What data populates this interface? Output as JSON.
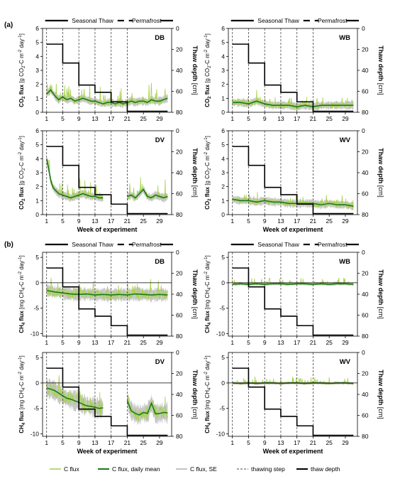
{
  "section_labels": {
    "a": "(a)",
    "b": "(b)"
  },
  "phase_labels": {
    "thaw": "Seasonal Thaw",
    "perm": "Permafrost"
  },
  "x_axis_title": "Week of experiment",
  "x_ticks": [
    1,
    5,
    9,
    13,
    17,
    21,
    25,
    29
  ],
  "thaw_depth_axis": {
    "label": "Thaw depth",
    "unit": "[cm]",
    "ticks": [
      0,
      20,
      40,
      60,
      80
    ],
    "range": [
      0,
      80
    ]
  },
  "colors": {
    "c_flux": "#a6d24b",
    "daily_mean": "#1a7a1a",
    "se": "#b4b4b4",
    "step": "#444444",
    "depth": "#000000"
  },
  "legend": {
    "c_flux": "C flux",
    "daily_mean": "C flux, daily mean",
    "se": "C flux, SE",
    "thawing_step": "thawing step",
    "thaw_depth": "thaw depth"
  },
  "chart_data": [
    {
      "id": "co2-DB",
      "type": "line",
      "panel_label": "DB",
      "y_label": "CO2 flux [g CO2-C m-2 day-1]",
      "y_ticks": [
        0,
        1,
        2,
        3,
        4,
        5,
        6
      ],
      "ylim": [
        0,
        6
      ],
      "x_range": [
        0,
        32
      ],
      "thawing_steps": [
        1,
        5,
        9,
        13,
        17,
        21
      ],
      "thaw_depth_weeks": [
        1,
        5,
        9,
        13,
        17,
        21,
        31
      ],
      "thaw_depth_cm": [
        15,
        33,
        54,
        61,
        70,
        79,
        79
      ],
      "daily_mean": {
        "x": [
          1,
          2,
          3,
          4,
          5,
          6,
          7,
          8,
          9,
          10,
          11,
          12,
          13,
          14,
          15,
          16,
          17,
          18,
          19,
          20,
          22,
          23,
          24,
          25,
          26,
          27,
          28,
          29,
          30,
          31
        ],
        "y": [
          1.3,
          1.6,
          1.2,
          0.9,
          1.1,
          0.9,
          1.0,
          0.8,
          0.9,
          1.0,
          0.9,
          0.8,
          0.8,
          0.7,
          0.6,
          0.7,
          0.7,
          0.6,
          0.7,
          0.6,
          0.8,
          0.7,
          0.8,
          0.8,
          0.7,
          0.9,
          0.8,
          0.8,
          0.9,
          1.0
        ]
      }
    },
    {
      "id": "co2-WB",
      "type": "line",
      "panel_label": "WB",
      "y_label": "CO2 flux [g CO2-C m-2 day-1]",
      "y_ticks": [
        0,
        1,
        2,
        3,
        4,
        5,
        6
      ],
      "ylim": [
        0,
        6
      ],
      "x_range": [
        0,
        32
      ],
      "thawing_steps": [
        1,
        5,
        9,
        13,
        17,
        21
      ],
      "thaw_depth_weeks": [
        1,
        5,
        9,
        13,
        17,
        21,
        31
      ],
      "thaw_depth_cm": [
        15,
        33,
        54,
        61,
        70,
        79,
        79
      ],
      "daily_mean": {
        "x": [
          1,
          3,
          5,
          7,
          9,
          11,
          13,
          15,
          17,
          19,
          21,
          23,
          25,
          27,
          29,
          31
        ],
        "y": [
          0.7,
          0.7,
          0.6,
          0.8,
          0.6,
          0.5,
          0.5,
          0.5,
          0.4,
          0.5,
          0.4,
          0.5,
          0.5,
          0.5,
          0.5,
          0.5
        ]
      }
    },
    {
      "id": "co2-DV",
      "type": "line",
      "panel_label": "DV",
      "y_label": "CO2 flux [g CO2-C m-2 day-1]",
      "y_ticks": [
        0,
        1,
        2,
        3,
        4,
        5,
        6
      ],
      "ylim": [
        0,
        6
      ],
      "x_range": [
        0,
        32
      ],
      "thawing_steps": [
        1,
        5,
        9,
        13,
        17,
        21
      ],
      "thaw_depth_weeks": [
        1,
        5,
        9,
        13,
        17,
        21,
        31
      ],
      "thaw_depth_cm": [
        15,
        33,
        54,
        61,
        70,
        79,
        79
      ],
      "daily_mean": {
        "x": [
          1,
          1.5,
          2,
          2.5,
          3,
          4,
          5,
          6,
          7,
          8,
          9,
          10,
          11,
          12,
          13,
          14,
          15
        ],
        "y": [
          4.0,
          3.3,
          2.5,
          2.0,
          1.8,
          1.5,
          1.4,
          1.3,
          1.2,
          1.3,
          1.4,
          1.5,
          1.4,
          1.3,
          1.3,
          1.2,
          1.2
        ]
      },
      "daily_mean_2": {
        "x": [
          21,
          22,
          23,
          24,
          25,
          26,
          27,
          28,
          29,
          30,
          31
        ],
        "y": [
          1.3,
          1.4,
          1.2,
          1.5,
          1.8,
          1.3,
          1.2,
          1.4,
          1.3,
          1.2,
          1.3
        ]
      }
    },
    {
      "id": "co2-WV",
      "type": "line",
      "panel_label": "WV",
      "y_label": "CO2 flux [g CO2-C m-2 day-1]",
      "y_ticks": [
        0,
        1,
        2,
        3,
        4,
        5,
        6
      ],
      "ylim": [
        0,
        6
      ],
      "x_range": [
        0,
        32
      ],
      "thawing_steps": [
        1,
        5,
        9,
        13,
        17,
        21
      ],
      "thaw_depth_weeks": [
        1,
        5,
        9,
        13,
        17,
        21,
        31
      ],
      "thaw_depth_cm": [
        15,
        33,
        54,
        61,
        70,
        79,
        79
      ],
      "daily_mean": {
        "x": [
          1,
          3,
          5,
          7,
          9,
          11,
          13,
          15,
          17,
          19,
          21,
          23,
          25,
          27,
          29,
          31
        ],
        "y": [
          1.1,
          1.0,
          1.0,
          0.9,
          1.0,
          0.9,
          0.9,
          0.8,
          0.8,
          0.8,
          0.8,
          0.7,
          0.8,
          0.7,
          0.7,
          0.6
        ]
      }
    },
    {
      "id": "ch4-DB",
      "type": "line",
      "panel_label": "DB",
      "y_label": "CH4 flux [mg CH4-C m-2 day-1]",
      "y_ticks": [
        -10,
        -5,
        0,
        5
      ],
      "ylim": [
        -10.5,
        6
      ],
      "x_range": [
        0,
        32
      ],
      "thawing_steps": [
        1,
        5,
        9,
        13,
        17,
        21
      ],
      "thaw_depth_weeks": [
        1,
        5,
        9,
        13,
        17,
        21,
        31
      ],
      "thaw_depth_cm": [
        15,
        33,
        54,
        61,
        70,
        79,
        79
      ],
      "daily_mean": {
        "x": [
          1,
          3,
          5,
          7,
          9,
          11,
          13,
          15,
          17,
          19,
          21,
          23,
          25,
          27,
          29,
          31
        ],
        "y": [
          -1.5,
          -1.8,
          -2.0,
          -2.2,
          -2.3,
          -2.2,
          -2.4,
          -2.3,
          -2.4,
          -2.3,
          -2.4,
          -2.2,
          -2.3,
          -2.4,
          -2.3,
          -2.4
        ]
      }
    },
    {
      "id": "ch4-WB",
      "type": "line",
      "panel_label": "WB",
      "y_label": "CH4 flux [mg CH4-C m-2 day-1]",
      "y_ticks": [
        -10,
        -5,
        0,
        5
      ],
      "ylim": [
        -10.5,
        6
      ],
      "x_range": [
        0,
        32
      ],
      "thawing_steps": [
        1,
        5,
        9,
        13,
        17,
        21
      ],
      "thaw_depth_weeks": [
        1,
        5,
        9,
        13,
        17,
        21,
        31
      ],
      "thaw_depth_cm": [
        15,
        33,
        54,
        61,
        70,
        79,
        79
      ],
      "daily_mean": {
        "x": [
          1,
          3,
          5,
          7,
          9,
          11,
          13,
          15,
          17,
          19,
          21,
          23,
          25,
          27,
          29,
          31
        ],
        "y": [
          -0.3,
          -0.2,
          -0.3,
          -0.2,
          -0.3,
          -0.2,
          -0.2,
          -0.3,
          -0.2,
          -0.2,
          -0.3,
          -0.2,
          -0.3,
          -0.2,
          -0.2,
          -0.3
        ]
      }
    },
    {
      "id": "ch4-DV",
      "type": "line",
      "panel_label": "DV",
      "y_label": "CH4 flux [mg CH4-C m-2 day-1]",
      "y_ticks": [
        -10,
        -5,
        0,
        5
      ],
      "ylim": [
        -10.5,
        6
      ],
      "x_range": [
        0,
        32
      ],
      "thawing_steps": [
        1,
        5,
        9,
        13,
        17,
        21
      ],
      "thaw_depth_weeks": [
        1,
        5,
        9,
        13,
        17,
        21,
        31
      ],
      "thaw_depth_cm": [
        15,
        33,
        54,
        61,
        70,
        79,
        79
      ],
      "daily_mean": {
        "x": [
          1,
          2,
          3,
          4,
          5,
          6,
          7,
          8,
          9,
          10,
          11,
          12,
          13,
          14,
          15
        ],
        "y": [
          -1.0,
          -1.2,
          -1.5,
          -2.0,
          -2.5,
          -3.0,
          -3.2,
          -3.5,
          -3.8,
          -4.2,
          -4.5,
          -4.6,
          -4.8,
          -5.0,
          -4.9
        ]
      },
      "daily_mean_2": {
        "x": [
          21,
          22,
          23,
          24,
          25,
          26,
          27,
          28,
          29,
          30,
          31
        ],
        "y": [
          -3.5,
          -5.5,
          -6.0,
          -6.3,
          -5.8,
          -6.0,
          -4.0,
          -6.1,
          -6.0,
          -5.8,
          -5.9
        ]
      }
    },
    {
      "id": "ch4-WV",
      "type": "line",
      "panel_label": "WV",
      "y_label": "CH4 flux [mg CH4-C m-2 day-1]",
      "y_ticks": [
        -10,
        -5,
        0,
        5
      ],
      "ylim": [
        -10.5,
        6
      ],
      "x_range": [
        0,
        32
      ],
      "thawing_steps": [
        1,
        5,
        9,
        13,
        17,
        21
      ],
      "thaw_depth_weeks": [
        1,
        5,
        9,
        13,
        17,
        21,
        31
      ],
      "thaw_depth_cm": [
        15,
        33,
        54,
        61,
        70,
        79,
        79
      ],
      "daily_mean": {
        "x": [
          1,
          3,
          5,
          7,
          9,
          11,
          13,
          15,
          17,
          19,
          21,
          23,
          25,
          27,
          29,
          31
        ],
        "y": [
          0.0,
          -0.1,
          0.0,
          -0.1,
          0.0,
          0.0,
          -0.1,
          0.0,
          0.0,
          -0.1,
          0.0,
          0.0,
          -0.1,
          0.0,
          0.0,
          -0.1
        ]
      }
    }
  ]
}
